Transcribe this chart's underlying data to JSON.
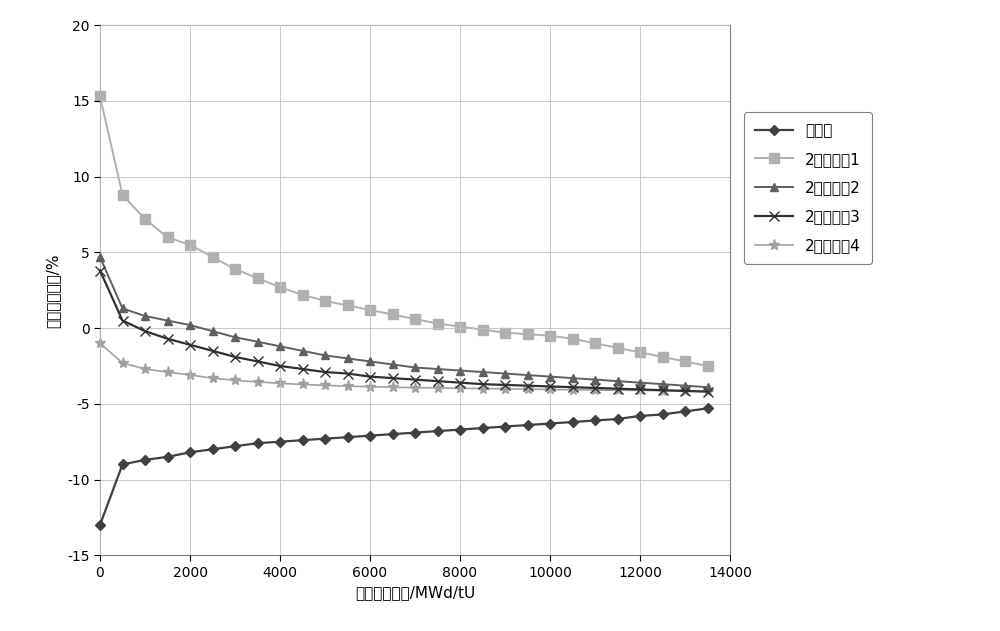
{
  "series": {
    "不分区": {
      "x": [
        0,
        500,
        1000,
        1500,
        2000,
        2500,
        3000,
        3500,
        4000,
        4500,
        5000,
        5500,
        6000,
        6500,
        7000,
        7500,
        8000,
        8500,
        9000,
        9500,
        10000,
        10500,
        11000,
        11500,
        12000,
        12500,
        13000,
        13500
      ],
      "y": [
        -13.0,
        -9.0,
        -8.7,
        -8.5,
        -8.2,
        -8.0,
        -7.8,
        -7.6,
        -7.5,
        -7.4,
        -7.3,
        -7.2,
        -7.1,
        -7.0,
        -6.9,
        -6.8,
        -6.7,
        -6.6,
        -6.5,
        -6.4,
        -6.3,
        -6.2,
        -6.1,
        -6.0,
        -5.8,
        -5.7,
        -5.5,
        -5.3
      ],
      "color": "#404040",
      "marker": "D",
      "markersize": 5,
      "linewidth": 1.6,
      "zorder": 3
    },
    "2分区方案1": {
      "x": [
        0,
        500,
        1000,
        1500,
        2000,
        2500,
        3000,
        3500,
        4000,
        4500,
        5000,
        5500,
        6000,
        6500,
        7000,
        7500,
        8000,
        8500,
        9000,
        9500,
        10000,
        10500,
        11000,
        11500,
        12000,
        12500,
        13000,
        13500
      ],
      "y": [
        15.3,
        8.8,
        7.2,
        6.0,
        5.5,
        4.7,
        3.9,
        3.3,
        2.7,
        2.2,
        1.8,
        1.5,
        1.2,
        0.9,
        0.6,
        0.3,
        0.1,
        -0.1,
        -0.3,
        -0.4,
        -0.5,
        -0.7,
        -1.0,
        -1.3,
        -1.6,
        -1.9,
        -2.2,
        -2.5
      ],
      "color": "#b0b0b0",
      "marker": "s",
      "markersize": 7,
      "linewidth": 1.4,
      "zorder": 2
    },
    "2分区方案2": {
      "x": [
        0,
        500,
        1000,
        1500,
        2000,
        2500,
        3000,
        3500,
        4000,
        4500,
        5000,
        5500,
        6000,
        6500,
        7000,
        7500,
        8000,
        8500,
        9000,
        9500,
        10000,
        10500,
        11000,
        11500,
        12000,
        12500,
        13000,
        13500
      ],
      "y": [
        4.7,
        1.3,
        0.8,
        0.5,
        0.2,
        -0.2,
        -0.6,
        -0.9,
        -1.2,
        -1.5,
        -1.8,
        -2.0,
        -2.2,
        -2.4,
        -2.6,
        -2.7,
        -2.8,
        -2.9,
        -3.0,
        -3.1,
        -3.2,
        -3.3,
        -3.4,
        -3.5,
        -3.6,
        -3.7,
        -3.8,
        -3.9
      ],
      "color": "#606060",
      "marker": "^",
      "markersize": 6,
      "linewidth": 1.4,
      "zorder": 4
    },
    "2分区方案3": {
      "x": [
        0,
        500,
        1000,
        1500,
        2000,
        2500,
        3000,
        3500,
        4000,
        4500,
        5000,
        5500,
        6000,
        6500,
        7000,
        7500,
        8000,
        8500,
        9000,
        9500,
        10000,
        10500,
        11000,
        11500,
        12000,
        12500,
        13000,
        13500
      ],
      "y": [
        3.8,
        0.5,
        -0.2,
        -0.7,
        -1.1,
        -1.5,
        -1.9,
        -2.2,
        -2.5,
        -2.7,
        -2.9,
        -3.0,
        -3.2,
        -3.3,
        -3.4,
        -3.5,
        -3.6,
        -3.7,
        -3.75,
        -3.8,
        -3.85,
        -3.9,
        -3.95,
        -4.0,
        -4.05,
        -4.1,
        -4.15,
        -4.2
      ],
      "color": "#303030",
      "marker": "x",
      "markersize": 7,
      "linewidth": 1.6,
      "zorder": 5
    },
    "2分区方案4": {
      "x": [
        0,
        500,
        1000,
        1500,
        2000,
        2500,
        3000,
        3500,
        4000,
        4500,
        5000,
        5500,
        6000,
        6500,
        7000,
        7500,
        8000,
        8500,
        9000,
        9500,
        10000,
        10500,
        11000,
        11500,
        12000,
        12500,
        13000,
        13500
      ],
      "y": [
        -1.0,
        -2.3,
        -2.7,
        -2.9,
        -3.1,
        -3.3,
        -3.45,
        -3.55,
        -3.65,
        -3.72,
        -3.78,
        -3.83,
        -3.87,
        -3.9,
        -3.93,
        -3.95,
        -3.97,
        -3.99,
        -4.01,
        -4.03,
        -4.05,
        -4.07,
        -4.09,
        -4.1,
        -4.11,
        -4.12,
        -4.13,
        -4.14
      ],
      "color": "#a0a0a0",
      "marker": "*",
      "markersize": 8,
      "linewidth": 1.2,
      "zorder": 1
    }
  },
  "xlabel": "平衡循环燃耗/MWd/tU",
  "ylabel": "功率轴向偏移/%",
  "xlim": [
    0,
    14000
  ],
  "ylim": [
    -15,
    20
  ],
  "xticks": [
    0,
    2000,
    4000,
    6000,
    8000,
    10000,
    12000,
    14000
  ],
  "yticks": [
    -15,
    -10,
    -5,
    0,
    5,
    10,
    15,
    20
  ],
  "legend_order": [
    "不分区",
    "2分区方案1",
    "2分区方案2",
    "2分区方案3",
    "2分区方案4"
  ],
  "background_color": "#ffffff",
  "figure_width": 10.0,
  "figure_height": 6.31,
  "dpi": 100
}
